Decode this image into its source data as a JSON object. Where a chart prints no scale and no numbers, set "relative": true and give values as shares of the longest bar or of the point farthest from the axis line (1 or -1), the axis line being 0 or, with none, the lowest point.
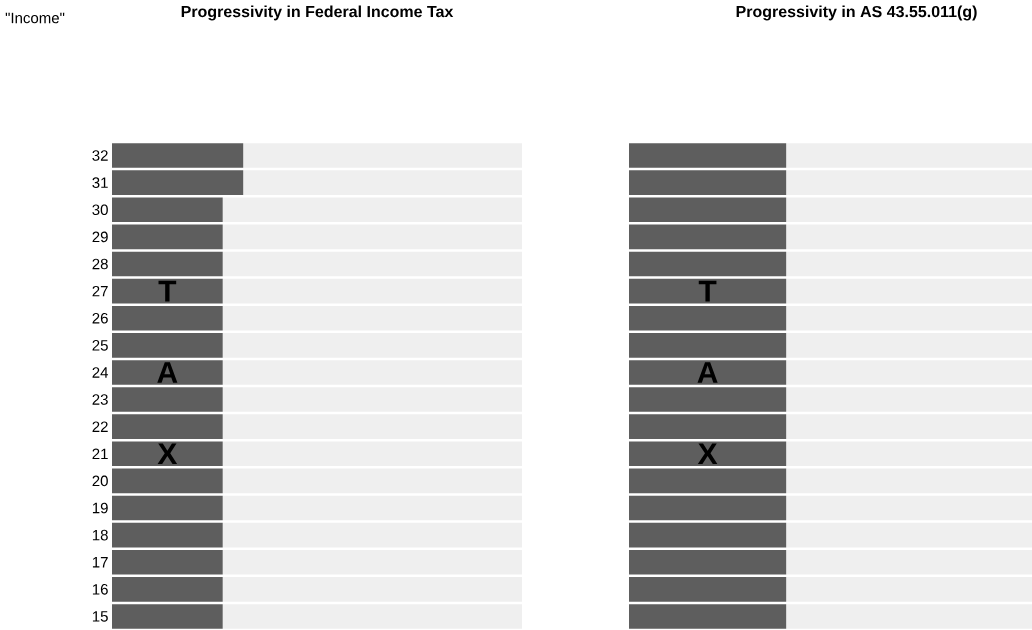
{
  "chart_data": [
    {
      "type": "bar",
      "title": "Progressivity in Federal Income Tax",
      "ylabel": "\"Income\"",
      "orientation": "horizontal",
      "stacked": true,
      "relative": true,
      "tick_labels": "y",
      "categories": [
        "32",
        "31",
        "30",
        "29",
        "28",
        "27",
        "26",
        "25",
        "24",
        "23",
        "22",
        "21",
        "20",
        "19",
        "18",
        "17",
        "16",
        "15"
      ],
      "series": [
        {
          "color": "#5e5e5e",
          "values": [
            0.32,
            0.32,
            0.27,
            0.27,
            0.27,
            0.27,
            0.27,
            0.27,
            0.27,
            0.27,
            0.27,
            0.27,
            0.27,
            0.27,
            0.27,
            0.27,
            0.27,
            0.27
          ]
        },
        {
          "color": "#efefef",
          "values": [
            0.68,
            0.68,
            0.73,
            0.73,
            0.73,
            0.73,
            0.73,
            0.73,
            0.73,
            0.73,
            0.73,
            0.73,
            0.73,
            0.73,
            0.73,
            0.73,
            0.73,
            0.73
          ]
        }
      ],
      "annotations": [
        "T",
        "A",
        "X"
      ]
    },
    {
      "type": "bar",
      "title": "Progressivity in AS 43.55.011(g)",
      "orientation": "horizontal",
      "stacked": true,
      "relative": true,
      "tick_labels": false,
      "categories": [
        "32",
        "31",
        "30",
        "29",
        "28",
        "27",
        "26",
        "25",
        "24",
        "23",
        "22",
        "21",
        "20",
        "19",
        "18",
        "17",
        "16",
        "15"
      ],
      "series": [
        {
          "color": "#5e5e5e",
          "values": [
            0.39,
            0.39,
            0.39,
            0.39,
            0.39,
            0.39,
            0.39,
            0.39,
            0.39,
            0.39,
            0.39,
            0.39,
            0.39,
            0.39,
            0.39,
            0.39,
            0.39,
            0.39
          ]
        },
        {
          "color": "#efefef",
          "values": [
            0.61,
            0.61,
            0.61,
            0.61,
            0.61,
            0.61,
            0.61,
            0.61,
            0.61,
            0.61,
            0.61,
            0.61,
            0.61,
            0.61,
            0.61,
            0.61,
            0.61,
            0.61
          ]
        }
      ],
      "annotations": [
        "T",
        "A",
        "X"
      ]
    }
  ]
}
